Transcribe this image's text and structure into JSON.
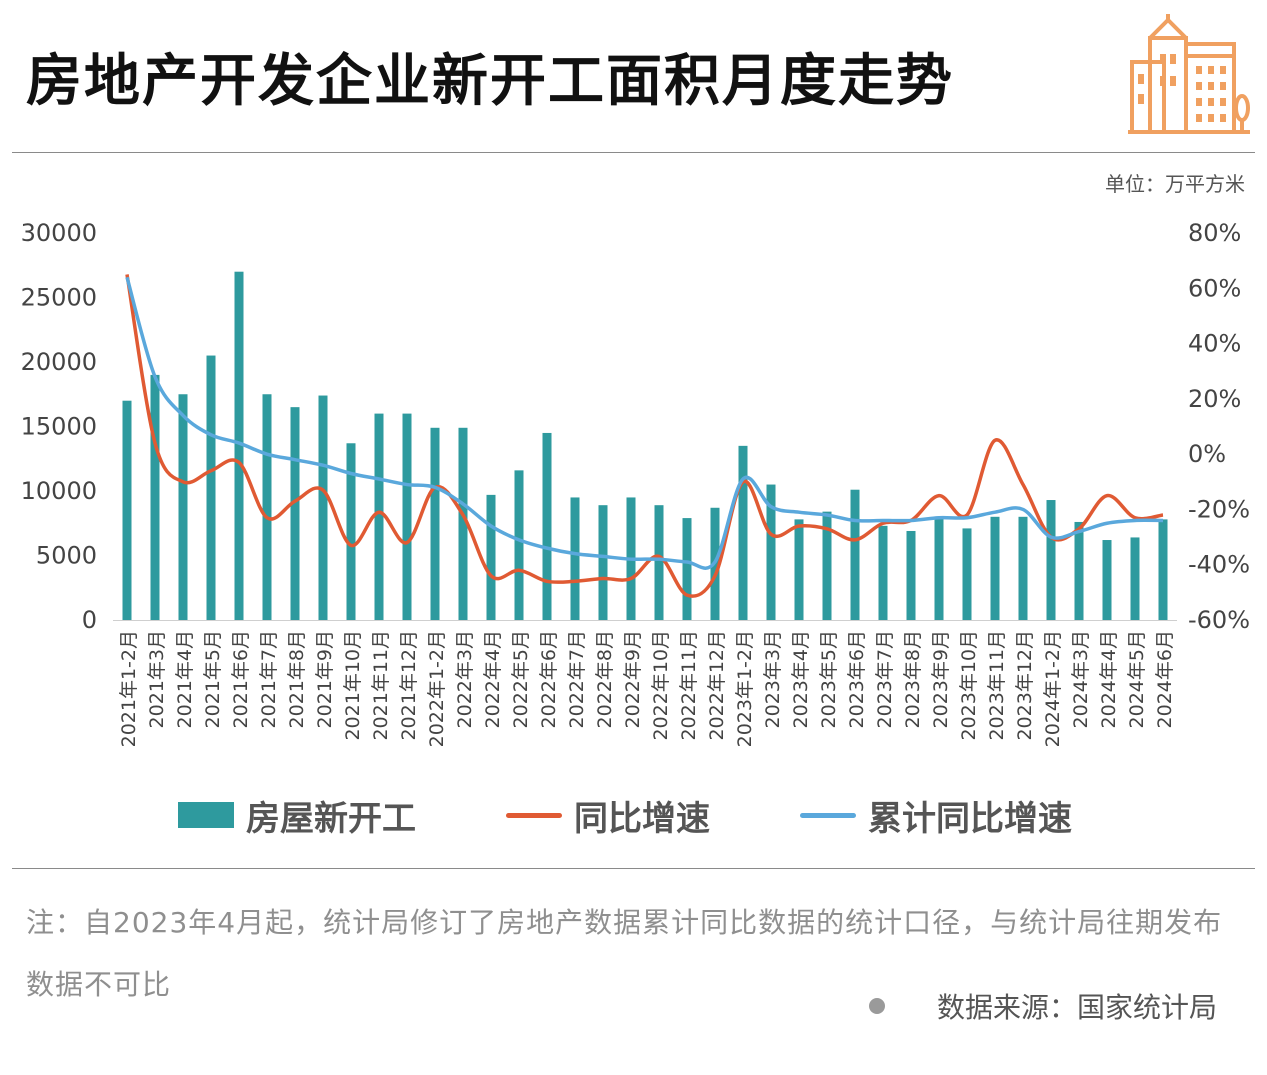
{
  "title": "房地产开发企业新开工面积月度走势",
  "unit_label": "单位：万平方米",
  "note": "注：自2023年4月起，统计局修订了房地产数据累计同比数据的统计口径，与统计局往期发布数据不可比",
  "source": "数据来源：国家统计局",
  "colors": {
    "bar": "#2e9a9e",
    "yoy": "#e05a33",
    "cum": "#5aa8dc",
    "accent_logo": "#f0a060",
    "source_dot": "#9a9a9a"
  },
  "legend": {
    "bar": "房屋新开工",
    "yoy": "同比增速",
    "cum": "累计同比增速"
  },
  "chart_data": {
    "type": "bar",
    "categories": [
      "2021年1-2月",
      "2021年3月",
      "2021年4月",
      "2021年5月",
      "2021年6月",
      "2021年7月",
      "2021年8月",
      "2021年9月",
      "2021年10月",
      "2021年11月",
      "2021年12月",
      "2022年1-2月",
      "2022年3月",
      "2022年4月",
      "2022年5月",
      "2022年6月",
      "2022年7月",
      "2022年8月",
      "2022年9月",
      "2022年10月",
      "2022年11月",
      "2022年12月",
      "2023年1-2月",
      "2023年3月",
      "2023年4月",
      "2023年5月",
      "2023年6月",
      "2023年7月",
      "2023年8月",
      "2023年9月",
      "2023年10月",
      "2023年11月",
      "2023年12月",
      "2024年1-2月",
      "2024年3月",
      "2024年4月",
      "2024年5月",
      "2024年6月"
    ],
    "series": [
      {
        "name": "房屋新开工",
        "type": "bar",
        "axis": "left",
        "values": [
          17000,
          19000,
          17500,
          20500,
          27000,
          17500,
          16500,
          17400,
          13700,
          16000,
          16000,
          14900,
          14900,
          9700,
          11600,
          14500,
          9500,
          8900,
          9500,
          8900,
          7900,
          8700,
          13500,
          10500,
          7800,
          8400,
          10100,
          7300,
          6900,
          8000,
          7100,
          8000,
          8000,
          9300,
          7600,
          6200,
          6400,
          7800
        ]
      },
      {
        "name": "同比增速",
        "type": "line",
        "axis": "right",
        "values": [
          65,
          4,
          -10,
          -6,
          -3,
          -23,
          -17,
          -13,
          -33,
          -21,
          -32,
          -12,
          -22,
          -44,
          -42,
          -46,
          -46,
          -45,
          -45,
          -37,
          -51,
          -44,
          -10,
          -29,
          -26,
          -27,
          -31,
          -25,
          -24,
          -15,
          -22,
          5,
          -11,
          -30,
          -27,
          -15,
          -23,
          -22
        ]
      },
      {
        "name": "累计同比增速",
        "type": "line",
        "axis": "right",
        "values": [
          64,
          28,
          14,
          7,
          4,
          0,
          -2,
          -4,
          -7,
          -9,
          -11,
          -12,
          -18,
          -26,
          -31,
          -34,
          -36,
          -37,
          -38,
          -38,
          -39,
          -39,
          -9,
          -19,
          -21,
          -22,
          -24,
          -24,
          -24,
          -23,
          -23,
          -21,
          -20,
          -30,
          -28,
          -25,
          -24,
          -24
        ]
      }
    ],
    "ylim_left": [
      0,
      30000
    ],
    "yticks_left": [
      "0",
      "5000",
      "10000",
      "15000",
      "20000",
      "25000",
      "30000"
    ],
    "ylim_right": [
      -60,
      80
    ],
    "yticks_right": [
      "-60%",
      "-40%",
      "-20%",
      "0%",
      "20%",
      "40%",
      "60%",
      "80%"
    ],
    "grid": false,
    "legend_position": "bottom"
  }
}
